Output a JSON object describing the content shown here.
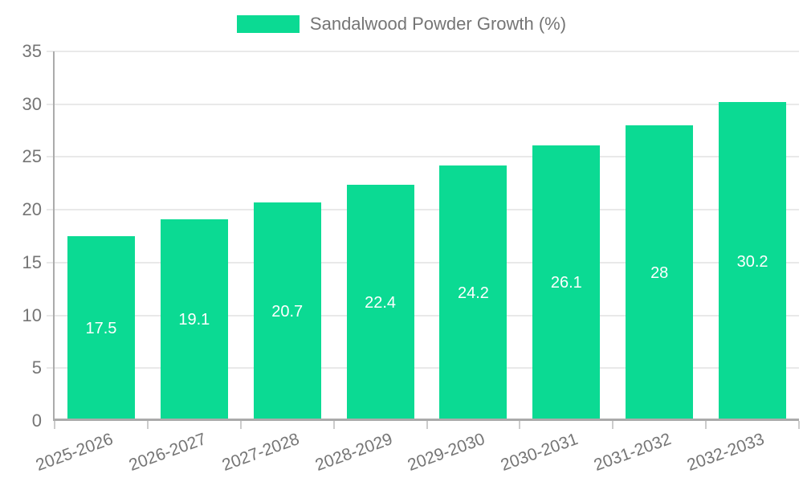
{
  "legend": {
    "label": "Sandalwood Powder Growth (%)"
  },
  "chart_data": {
    "type": "bar",
    "title": "Sandalwood Powder Growth (%)",
    "categories": [
      "2025-2026",
      "2026-2027",
      "2027-2028",
      "2028-2029",
      "2029-2030",
      "2030-2031",
      "2031-2032",
      "2032-2033"
    ],
    "values": [
      17.5,
      19.1,
      20.7,
      22.4,
      24.2,
      26.1,
      28,
      30.2
    ],
    "value_labels": [
      "17.5",
      "19.1",
      "20.7",
      "22.4",
      "24.2",
      "26.1",
      "28",
      "30.2"
    ],
    "xlabel": "",
    "ylabel": "",
    "ylim": [
      0,
      35
    ],
    "yticks": [
      0,
      5,
      10,
      15,
      20,
      25,
      30,
      35
    ],
    "grid": true,
    "legend_position": "top-center",
    "x_label_rotation_deg": -20,
    "colors": {
      "bar": "#0bda93",
      "data_label": "#ffffff",
      "axis_text": "#757575",
      "gridline": "#e9e9e9",
      "axis_line": "#ababab",
      "tick": "#cccccc",
      "background": "#ffffff"
    }
  }
}
